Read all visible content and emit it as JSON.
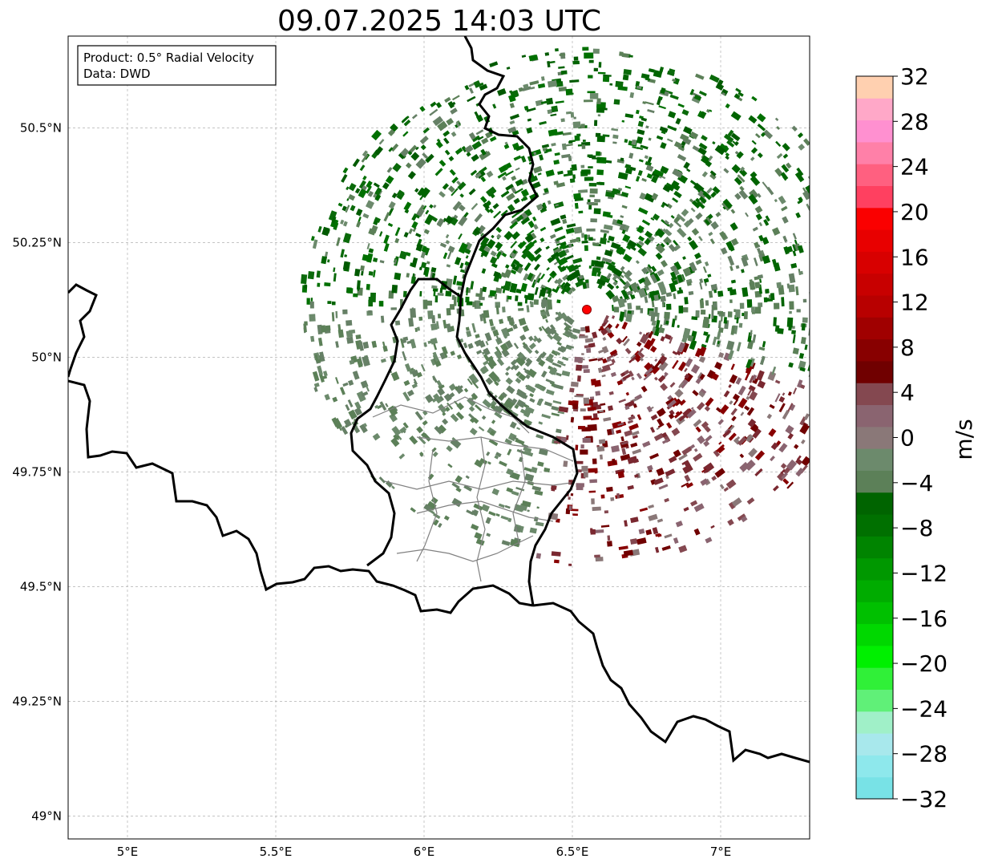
{
  "title": "09.07.2025 14:03 UTC",
  "info_box": {
    "product": "Product: 0.5° Radial Velocity",
    "data_source": "Data: DWD"
  },
  "map": {
    "lon_range": [
      4.8,
      7.3
    ],
    "lat_range": [
      48.95,
      50.7
    ],
    "lon_ticks": [
      {
        "value": 5.0,
        "label": "5°E"
      },
      {
        "value": 5.5,
        "label": "5.5°E"
      },
      {
        "value": 6.0,
        "label": "6°E"
      },
      {
        "value": 6.5,
        "label": "6.5°E"
      },
      {
        "value": 7.0,
        "label": "7°E"
      }
    ],
    "lat_ticks": [
      {
        "value": 49.0,
        "label": "49°N"
      },
      {
        "value": 49.25,
        "label": "49.25°N"
      },
      {
        "value": 49.5,
        "label": "49.5°N"
      },
      {
        "value": 49.75,
        "label": "49.75°N"
      },
      {
        "value": 50.0,
        "label": "50°N"
      },
      {
        "value": 50.25,
        "label": "50.25°N"
      },
      {
        "value": 50.5,
        "label": "50.5°N"
      }
    ],
    "gridlines": true,
    "radar_site": {
      "lon": 6.55,
      "lat": 50.11,
      "color": "#ff0000"
    }
  },
  "colorbar": {
    "label": "m/s",
    "min": -32,
    "max": 32,
    "ticks": [
      "−32",
      "−28",
      "−24",
      "−20",
      "−16",
      "−12",
      "−8",
      "−4",
      "0",
      "4",
      "8",
      "12",
      "16",
      "20",
      "24",
      "28",
      "32"
    ],
    "colors": [
      "#78e2e6",
      "#8ee8ec",
      "#a8e8ec",
      "#a0f0c8",
      "#60f078",
      "#30f038",
      "#00f000",
      "#00d800",
      "#00c000",
      "#00ac00",
      "#009800",
      "#008400",
      "#007000",
      "#006400",
      "#5c8058",
      "#6c8a6c",
      "#8a7878",
      "#8a6470",
      "#844850",
      "#700000",
      "#880000",
      "#a00000",
      "#b80000",
      "#c80000",
      "#d80000",
      "#e80000",
      "#fa0000",
      "#ff4060",
      "#ff6080",
      "#ff80a8",
      "#ff90d0",
      "#ffa8c8",
      "#ffd0b0"
    ]
  }
}
